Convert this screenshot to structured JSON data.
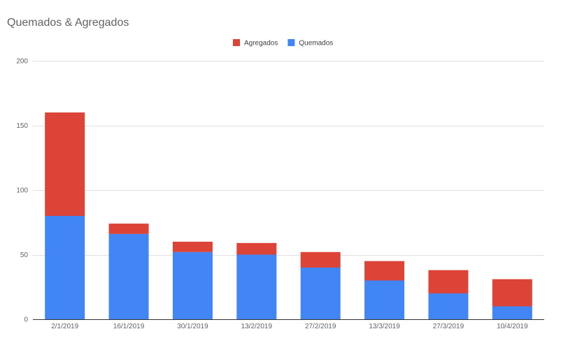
{
  "chart_data": {
    "type": "bar",
    "stacked": true,
    "title": "Quemados & Agregados",
    "xlabel": "",
    "ylabel": "",
    "categories": [
      "2/1/2019",
      "16/1/2019",
      "30/1/2019",
      "13/2/2019",
      "27/2/2019",
      "13/3/2019",
      "27/3/2019",
      "10/4/2019"
    ],
    "series": [
      {
        "name": "Quemados",
        "color": "#4285f4",
        "values": [
          80,
          66,
          52,
          50,
          40,
          30,
          20,
          10
        ]
      },
      {
        "name": "Agregados",
        "color": "#db4437",
        "values": [
          80,
          8,
          8,
          9,
          12,
          15,
          18,
          21
        ]
      }
    ],
    "ylim": [
      0,
      200
    ],
    "yticks": [
      0,
      50,
      100,
      150,
      200
    ],
    "grid": true,
    "legend": {
      "position": "top-center",
      "order": [
        "Agregados",
        "Quemados"
      ]
    }
  }
}
